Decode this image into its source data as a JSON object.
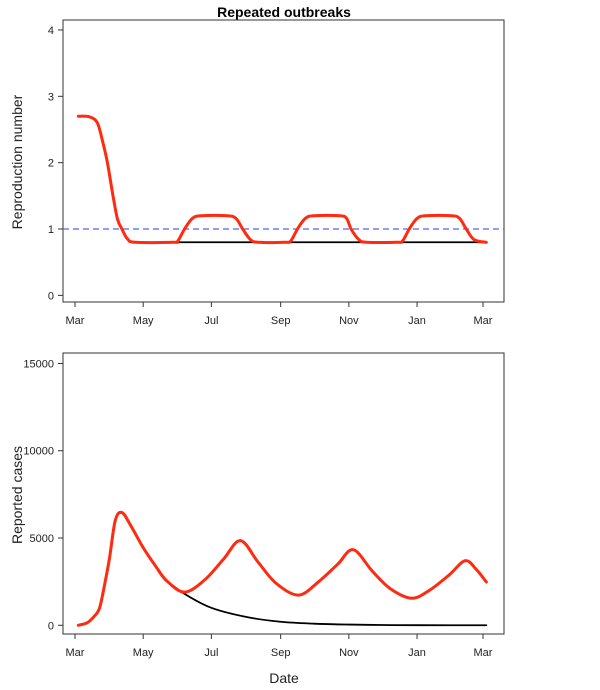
{
  "chart_data": [
    {
      "type": "line",
      "title": "Repeated outbreaks",
      "xlabel": "",
      "ylabel": "Reproduction number",
      "xticks": [
        "Mar",
        "May",
        "Jul",
        "Sep",
        "Nov",
        "Jan",
        "Mar"
      ],
      "yticks": [
        0,
        1,
        2,
        3,
        4
      ],
      "ylim": [
        -0.1,
        4.15
      ],
      "grid": false,
      "reference_line": {
        "y": 1,
        "style": "dashed",
        "color": "#5566ee"
      },
      "series": [
        {
          "color": "#000000",
          "points": [
            [
              "May 28",
              0.8
            ],
            [
              "Mar 04",
              0.8
            ]
          ]
        },
        {
          "color": "#ff2a10",
          "points": [
            [
              "Mar 04",
              2.7
            ],
            [
              "Mar 14",
              2.69
            ],
            [
              "Mar 21",
              2.6
            ],
            [
              "Mar 26",
              2.3
            ],
            [
              "Mar 30",
              2.0
            ],
            [
              "Apr 04",
              1.5
            ],
            [
              "Apr 08",
              1.15
            ],
            [
              "Apr 12",
              1.0
            ],
            [
              "Apr 17",
              0.85
            ],
            [
              "Apr 24",
              0.8
            ],
            [
              "May 28",
              0.8
            ],
            [
              "Jun 01",
              0.82
            ],
            [
              "Jun 07",
              1.0
            ],
            [
              "Jun 14",
              1.16
            ],
            [
              "Jun 22",
              1.2
            ],
            [
              "Jul 15",
              1.2
            ],
            [
              "Jul 23",
              1.16
            ],
            [
              "Jul 29",
              1.0
            ],
            [
              "Aug 05",
              0.84
            ],
            [
              "Aug 12",
              0.8
            ],
            [
              "Sep 05",
              0.8
            ],
            [
              "Sep 10",
              0.82
            ],
            [
              "Sep 16",
              1.0
            ],
            [
              "Sep 23",
              1.16
            ],
            [
              "Oct 01",
              1.2
            ],
            [
              "Oct 24",
              1.2
            ],
            [
              "Oct 30",
              1.16
            ],
            [
              "Nov 03",
              1.0
            ],
            [
              "Nov 10",
              0.84
            ],
            [
              "Nov 17",
              0.8
            ],
            [
              "Dec 14",
              0.8
            ],
            [
              "Dec 19",
              0.82
            ],
            [
              "Dec 25",
              1.0
            ],
            [
              "Jan 01",
              1.16
            ],
            [
              "Jan 09",
              1.2
            ],
            [
              "Feb 01",
              1.2
            ],
            [
              "Feb 08",
              1.16
            ],
            [
              "Feb 14",
              1.0
            ],
            [
              "Feb 21",
              0.84
            ],
            [
              "Mar 04",
              0.8
            ]
          ]
        }
      ]
    },
    {
      "type": "line",
      "title": "",
      "xlabel": "Date",
      "ylabel": "Reported cases",
      "xticks": [
        "Mar",
        "May",
        "Jul",
        "Sep",
        "Nov",
        "Jan",
        "Mar"
      ],
      "yticks": [
        0,
        5000,
        10000,
        15000
      ],
      "ylim": [
        -500,
        15600
      ],
      "grid": false,
      "series": [
        {
          "color": "#000000",
          "points": [
            [
              "May 22",
              2550
            ],
            [
              "Jun 07",
              1800
            ],
            [
              "Jul 01",
              1000
            ],
            [
              "Aug 01",
              480
            ],
            [
              "Sep 01",
              200
            ],
            [
              "Oct 01",
              90
            ],
            [
              "Nov 01",
              40
            ],
            [
              "Dec 01",
              15
            ],
            [
              "Jan 01",
              5
            ],
            [
              "Mar 04",
              0
            ]
          ]
        },
        {
          "color": "#ff2a10",
          "points": [
            [
              "Mar 04",
              0
            ],
            [
              "Mar 12",
              150
            ],
            [
              "Mar 18",
              500
            ],
            [
              "Mar 23",
              1000
            ],
            [
              "Mar 28",
              2500
            ],
            [
              "Apr 01",
              3900
            ],
            [
              "Apr 06",
              6000
            ],
            [
              "Apr 12",
              6460
            ],
            [
              "Apr 20",
              5700
            ],
            [
              "May 01",
              4450
            ],
            [
              "May 12",
              3400
            ],
            [
              "May 22",
              2550
            ],
            [
              "Jun 07",
              1900
            ],
            [
              "Jun 25",
              2600
            ],
            [
              "Jul 12",
              3800
            ],
            [
              "Jul 27",
              4850
            ],
            [
              "Aug 12",
              3600
            ],
            [
              "Aug 28",
              2400
            ],
            [
              "Sep 17",
              1730
            ],
            [
              "Oct 05",
              2500
            ],
            [
              "Oct 22",
              3500
            ],
            [
              "Nov 05",
              4330
            ],
            [
              "Nov 22",
              3100
            ],
            [
              "Dec 08",
              2100
            ],
            [
              "Dec 27",
              1550
            ],
            [
              "Jan 12",
              2000
            ],
            [
              "Jan 30",
              2900
            ],
            [
              "Feb 13",
              3700
            ],
            [
              "Feb 23",
              3200
            ],
            [
              "Mar 04",
              2480
            ]
          ]
        }
      ]
    }
  ]
}
